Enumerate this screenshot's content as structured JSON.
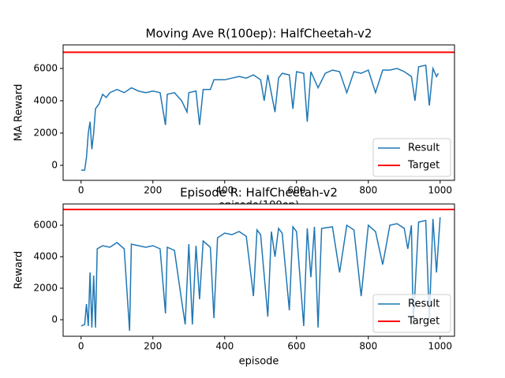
{
  "chart_data": [
    {
      "type": "line",
      "title": "Moving Ave R(100ep): HalfCheetah-v2",
      "x_label": "episode(100ep)",
      "y_label": "MA Reward",
      "xlim": [
        -50,
        1040
      ],
      "ylim": [
        -930,
        7460
      ],
      "xticks": [
        0,
        200,
        400,
        600,
        800,
        1000
      ],
      "yticks": [
        0,
        2000,
        4000,
        6000
      ],
      "legend": "lower right",
      "series": [
        {
          "name": "Result",
          "color": "#1f77b4",
          "x": [
            0,
            10,
            15,
            20,
            25,
            30,
            35,
            40,
            50,
            60,
            70,
            80,
            100,
            120,
            140,
            160,
            180,
            200,
            220,
            235,
            240,
            260,
            280,
            295,
            300,
            320,
            330,
            340,
            360,
            370,
            400,
            420,
            440,
            460,
            480,
            500,
            510,
            520,
            540,
            550,
            560,
            580,
            590,
            600,
            620,
            630,
            640,
            660,
            680,
            700,
            720,
            740,
            760,
            780,
            800,
            820,
            840,
            860,
            880,
            900,
            920,
            930,
            940,
            960,
            970,
            980,
            990,
            995
          ],
          "values": [
            -300,
            -300,
            500,
            2000,
            2700,
            1000,
            2000,
            3500,
            3800,
            4400,
            4200,
            4500,
            4700,
            4500,
            4800,
            4600,
            4500,
            4600,
            4500,
            2500,
            4400,
            4500,
            4000,
            3300,
            4500,
            4600,
            2500,
            4700,
            4700,
            5300,
            5300,
            5400,
            5500,
            5400,
            5600,
            5300,
            4000,
            5600,
            3300,
            5400,
            5700,
            5600,
            3500,
            5800,
            5700,
            2700,
            5800,
            4800,
            5700,
            5900,
            5800,
            4500,
            5800,
            5700,
            5900,
            4500,
            5900,
            5900,
            6000,
            5800,
            5500,
            4000,
            6100,
            6200,
            3700,
            6000,
            5500,
            5700
          ]
        }
      ],
      "target": {
        "name": "Target",
        "color": "#ff0000",
        "value": 7000
      }
    },
    {
      "type": "line",
      "title": "Episode R: HalfCheetah-v2",
      "x_label": "episode",
      "y_label": "Reward",
      "xlim": [
        -50,
        1040
      ],
      "ylim": [
        -1050,
        7350
      ],
      "xticks": [
        0,
        200,
        400,
        600,
        800,
        1000
      ],
      "yticks": [
        0,
        2000,
        4000,
        6000
      ],
      "legend": "lower right",
      "series": [
        {
          "name": "Result",
          "color": "#1f77b4",
          "x": [
            0,
            10,
            15,
            20,
            25,
            30,
            35,
            40,
            45,
            60,
            80,
            100,
            120,
            135,
            140,
            160,
            180,
            200,
            220,
            235,
            240,
            260,
            280,
            290,
            300,
            310,
            320,
            330,
            340,
            360,
            370,
            380,
            400,
            420,
            440,
            460,
            480,
            490,
            500,
            520,
            530,
            540,
            550,
            560,
            580,
            590,
            600,
            620,
            630,
            640,
            650,
            660,
            670,
            700,
            720,
            740,
            760,
            780,
            800,
            820,
            840,
            860,
            880,
            900,
            910,
            920,
            925,
            940,
            960,
            970,
            980,
            990,
            1000
          ],
          "values": [
            -400,
            -300,
            1000,
            -400,
            3000,
            -500,
            2800,
            -500,
            4500,
            4700,
            4600,
            4900,
            4500,
            -700,
            4800,
            4700,
            4600,
            4700,
            4500,
            400,
            4600,
            4400,
            1200,
            -300,
            4800,
            -300,
            4700,
            1300,
            5000,
            4600,
            100,
            5200,
            5500,
            5400,
            5600,
            5300,
            1500,
            5700,
            5400,
            200,
            5600,
            4000,
            5800,
            5500,
            600,
            5900,
            5600,
            -400,
            5800,
            2700,
            5900,
            -500,
            5800,
            5900,
            3000,
            6000,
            5700,
            1500,
            6000,
            5600,
            3500,
            6000,
            6100,
            5800,
            4500,
            6000,
            -300,
            6200,
            6300,
            0,
            6400,
            3000,
            6500
          ]
        }
      ],
      "target": {
        "name": "Target",
        "color": "#ff0000",
        "value": 7000
      }
    }
  ]
}
